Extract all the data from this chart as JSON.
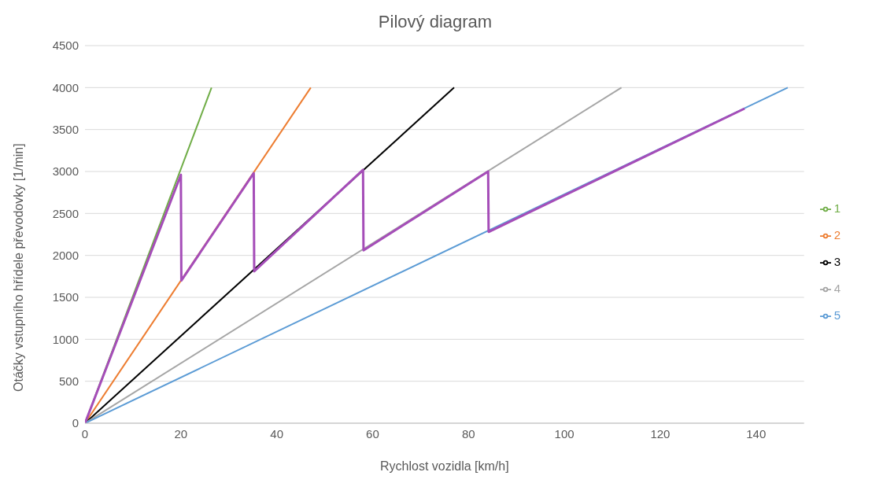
{
  "chart_data": {
    "type": "line",
    "title": "Pilový diagram",
    "xlabel": "Rychlost vozidla [km/h]",
    "ylabel": "Otáčky vstupního hřídele převodovky [1/min]",
    "series": [
      {
        "name": "1",
        "color": "#70ad47",
        "x": [
          0,
          26.4
        ],
        "values": [
          0,
          4000
        ]
      },
      {
        "name": "2",
        "color": "#ed7d31",
        "x": [
          0,
          47.1
        ],
        "values": [
          0,
          4000
        ]
      },
      {
        "name": "3",
        "color": "#000000",
        "x": [
          0,
          77
        ],
        "values": [
          0,
          4000
        ]
      },
      {
        "name": "4",
        "color": "#a5a5a5",
        "x": [
          0,
          111.9
        ],
        "values": [
          0,
          4000
        ]
      },
      {
        "name": "5",
        "color": "#5b9bd5",
        "x": [
          0,
          146.6
        ],
        "values": [
          0,
          4000
        ]
      },
      {
        "color": "#a54db8",
        "x": [
          0,
          20,
          20.1,
          35.2,
          35.3,
          58,
          58.1,
          84.1,
          84.2,
          137.6
        ],
        "values": [
          0,
          2960,
          1700,
          2980,
          1810,
          3020,
          2060,
          3000,
          2280,
          3750
        ]
      }
    ],
    "xlim": [
      0,
      150
    ],
    "xticks": [
      0,
      20,
      40,
      60,
      80,
      100,
      120,
      140
    ],
    "ylim": [
      0,
      4500
    ],
    "yticks": [
      0,
      500,
      1000,
      1500,
      2000,
      2500,
      3000,
      3500,
      4000,
      4500
    ],
    "grid": "y",
    "legend": "right",
    "marker": "none",
    "line_style": "solid"
  }
}
